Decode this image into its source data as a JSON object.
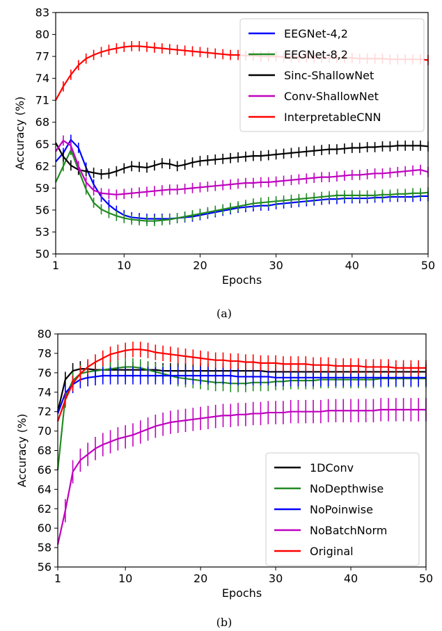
{
  "captions": [
    "(a)",
    "(b)"
  ],
  "chart_data": [
    {
      "type": "line",
      "title": "",
      "xlabel": "Epochs",
      "ylabel": "Accuracy (%)",
      "xlim": [
        1,
        50
      ],
      "ylim": [
        50,
        83
      ],
      "xticks": [
        1,
        10,
        20,
        30,
        40,
        50
      ],
      "yticks": [
        50,
        53,
        56,
        59,
        62,
        65,
        68,
        71,
        74,
        77,
        80,
        83
      ],
      "grid": false,
      "legend_position": "top-right",
      "error_bars": true,
      "series": [
        {
          "name": "EEGNet-4,2",
          "color": "#0000ff",
          "err": 0.7,
          "values": [
            62.6,
            63.8,
            65.6,
            64.5,
            61.8,
            59.5,
            57.8,
            56.7,
            55.9,
            55.3,
            55.0,
            54.9,
            54.8,
            54.8,
            54.8,
            54.8,
            54.9,
            55.0,
            55.1,
            55.3,
            55.5,
            55.7,
            55.9,
            56.1,
            56.3,
            56.4,
            56.5,
            56.6,
            56.6,
            56.8,
            56.9,
            57.0,
            57.1,
            57.2,
            57.3,
            57.4,
            57.5,
            57.5,
            57.6,
            57.6,
            57.6,
            57.6,
            57.7,
            57.7,
            57.8,
            57.8,
            57.8,
            57.8,
            57.9,
            57.9
          ]
        },
        {
          "name": "EEGNet-8,2",
          "color": "#228b22",
          "err": 0.7,
          "values": [
            59.8,
            62.0,
            64.2,
            61.5,
            58.8,
            57.0,
            56.1,
            55.6,
            55.2,
            54.9,
            54.7,
            54.6,
            54.5,
            54.5,
            54.6,
            54.7,
            54.9,
            55.1,
            55.3,
            55.5,
            55.7,
            55.9,
            56.1,
            56.3,
            56.5,
            56.7,
            56.9,
            57.0,
            57.1,
            57.2,
            57.3,
            57.4,
            57.5,
            57.6,
            57.7,
            57.8,
            57.9,
            58.0,
            58.0,
            58.0,
            58.0,
            58.0,
            58.0,
            58.1,
            58.1,
            58.2,
            58.2,
            58.3,
            58.3,
            58.4
          ]
        },
        {
          "name": "Sinc-ShallowNet",
          "color": "#000000",
          "err": 0.7,
          "values": [
            65.2,
            63.3,
            62.1,
            61.5,
            61.3,
            61.1,
            60.9,
            61.0,
            61.3,
            61.7,
            62.0,
            61.9,
            61.8,
            62.1,
            62.4,
            62.3,
            62.0,
            62.2,
            62.5,
            62.7,
            62.8,
            62.9,
            63.0,
            63.1,
            63.2,
            63.3,
            63.4,
            63.4,
            63.5,
            63.6,
            63.7,
            63.8,
            63.9,
            64.0,
            64.1,
            64.2,
            64.3,
            64.3,
            64.4,
            64.5,
            64.5,
            64.6,
            64.6,
            64.7,
            64.7,
            64.8,
            64.8,
            64.8,
            64.8,
            64.7
          ]
        },
        {
          "name": "Conv-ShallowNet",
          "color": "#bf00bf",
          "err": 0.7,
          "values": [
            64.0,
            65.5,
            64.8,
            62.0,
            59.8,
            58.7,
            58.3,
            58.2,
            58.1,
            58.2,
            58.3,
            58.4,
            58.5,
            58.6,
            58.7,
            58.8,
            58.8,
            58.9,
            59.0,
            59.1,
            59.2,
            59.3,
            59.4,
            59.5,
            59.6,
            59.7,
            59.7,
            59.8,
            59.8,
            59.9,
            60.0,
            60.1,
            60.2,
            60.3,
            60.4,
            60.5,
            60.5,
            60.6,
            60.7,
            60.8,
            60.8,
            60.9,
            61.0,
            61.0,
            61.1,
            61.2,
            61.3,
            61.4,
            61.5,
            61.2
          ]
        },
        {
          "name": "InterpretableCNN",
          "color": "#ff0000",
          "err": 0.7,
          "values": [
            71.0,
            72.9,
            74.5,
            75.8,
            76.7,
            77.2,
            77.6,
            77.9,
            78.1,
            78.3,
            78.4,
            78.4,
            78.3,
            78.2,
            78.1,
            78.0,
            77.9,
            77.8,
            77.7,
            77.6,
            77.5,
            77.4,
            77.3,
            77.2,
            77.2,
            77.1,
            77.1,
            77.0,
            77.0,
            77.0,
            76.9,
            76.9,
            76.9,
            76.9,
            76.8,
            76.8,
            76.8,
            76.8,
            76.8,
            76.8,
            76.7,
            76.7,
            76.7,
            76.7,
            76.6,
            76.6,
            76.6,
            76.6,
            76.6,
            76.5
          ]
        }
      ]
    },
    {
      "type": "line",
      "title": "",
      "xlabel": "Epochs",
      "ylabel": "Accuracy (%)",
      "xlim": [
        1,
        50
      ],
      "ylim": [
        56,
        80
      ],
      "xticks": [
        1,
        10,
        20,
        30,
        40,
        50
      ],
      "yticks": [
        56,
        58,
        60,
        62,
        64,
        66,
        68,
        70,
        72,
        74,
        76,
        78,
        80
      ],
      "grid": false,
      "legend_position": "bottom-right",
      "error_bars": true,
      "series": [
        {
          "name": "1DConv",
          "color": "#000000",
          "err": 0.8,
          "values": [
            72.0,
            75.3,
            76.2,
            76.4,
            76.4,
            76.3,
            76.3,
            76.3,
            76.3,
            76.3,
            76.3,
            76.3,
            76.3,
            76.3,
            76.2,
            76.2,
            76.2,
            76.2,
            76.2,
            76.2,
            76.2,
            76.2,
            76.2,
            76.2,
            76.2,
            76.2,
            76.2,
            76.2,
            76.1,
            76.1,
            76.1,
            76.1,
            76.1,
            76.1,
            76.1,
            76.1,
            76.1,
            76.1,
            76.1,
            76.1,
            76.1,
            76.1,
            76.1,
            76.1,
            76.1,
            76.1,
            76.1,
            76.1,
            76.1,
            76.1
          ]
        },
        {
          "name": "NoDepthwise",
          "color": "#228b22",
          "err": 0.9,
          "values": [
            66.0,
            73.5,
            75.2,
            75.9,
            76.1,
            76.2,
            76.3,
            76.4,
            76.5,
            76.6,
            76.6,
            76.5,
            76.3,
            76.1,
            75.9,
            75.7,
            75.5,
            75.4,
            75.3,
            75.2,
            75.1,
            75.0,
            75.0,
            74.9,
            74.9,
            74.9,
            75.0,
            75.0,
            75.0,
            75.1,
            75.1,
            75.2,
            75.2,
            75.2,
            75.2,
            75.3,
            75.3,
            75.3,
            75.3,
            75.3,
            75.3,
            75.3,
            75.3,
            75.4,
            75.4,
            75.4,
            75.4,
            75.4,
            75.4,
            75.4
          ]
        },
        {
          "name": "NoPoinwise",
          "color": "#0000ff",
          "err": 0.9,
          "values": [
            71.8,
            73.9,
            74.8,
            75.3,
            75.5,
            75.6,
            75.7,
            75.7,
            75.7,
            75.7,
            75.7,
            75.7,
            75.7,
            75.7,
            75.7,
            75.7,
            75.7,
            75.7,
            75.7,
            75.7,
            75.7,
            75.7,
            75.7,
            75.7,
            75.6,
            75.6,
            75.6,
            75.6,
            75.6,
            75.5,
            75.5,
            75.5,
            75.5,
            75.5,
            75.5,
            75.5,
            75.5,
            75.5,
            75.5,
            75.5,
            75.5,
            75.5,
            75.5,
            75.5,
            75.5,
            75.5,
            75.5,
            75.5,
            75.5,
            75.5
          ]
        },
        {
          "name": "NoBatchNorm",
          "color": "#bf00bf",
          "err": 1.2,
          "values": [
            58.3,
            61.8,
            65.8,
            67.0,
            67.6,
            68.2,
            68.6,
            68.9,
            69.2,
            69.4,
            69.6,
            69.9,
            70.2,
            70.5,
            70.7,
            70.9,
            71.0,
            71.1,
            71.2,
            71.3,
            71.4,
            71.5,
            71.6,
            71.6,
            71.7,
            71.7,
            71.8,
            71.8,
            71.9,
            71.9,
            71.9,
            72.0,
            72.0,
            72.0,
            72.0,
            72.0,
            72.1,
            72.1,
            72.1,
            72.1,
            72.1,
            72.1,
            72.1,
            72.2,
            72.2,
            72.2,
            72.2,
            72.2,
            72.2,
            72.2
          ]
        },
        {
          "name": "Original",
          "color": "#ff0000",
          "err": 0.8,
          "values": [
            71.0,
            73.2,
            74.9,
            75.9,
            76.6,
            77.1,
            77.5,
            77.9,
            78.1,
            78.3,
            78.4,
            78.4,
            78.3,
            78.1,
            78.0,
            77.9,
            77.8,
            77.7,
            77.6,
            77.5,
            77.4,
            77.3,
            77.3,
            77.2,
            77.2,
            77.1,
            77.1,
            77.0,
            77.0,
            77.0,
            76.9,
            76.9,
            76.9,
            76.9,
            76.8,
            76.8,
            76.8,
            76.7,
            76.7,
            76.7,
            76.7,
            76.6,
            76.6,
            76.6,
            76.6,
            76.5,
            76.5,
            76.5,
            76.5,
            76.5
          ]
        }
      ]
    }
  ]
}
